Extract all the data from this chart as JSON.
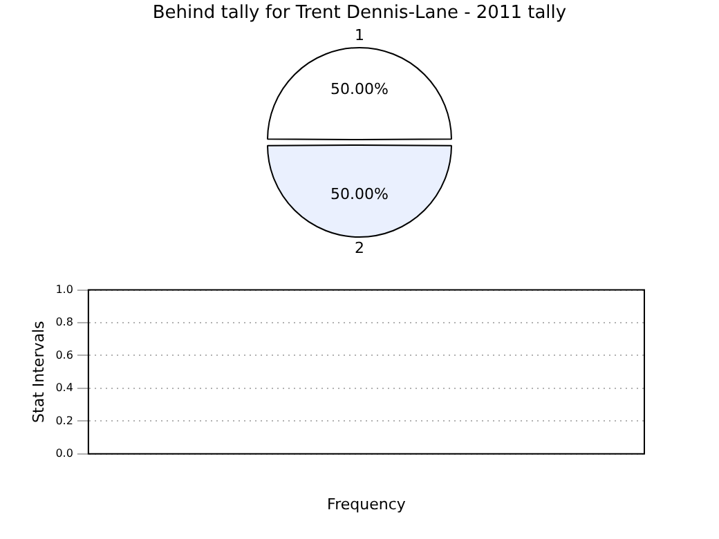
{
  "chart_data": [
    {
      "type": "pie",
      "title": "Behind tally for Trent Dennis-Lane - 2011 tally",
      "categories": [
        "1",
        "2"
      ],
      "values": [
        50,
        50
      ],
      "colors": [
        "#ffffff",
        "#eaf0fe"
      ],
      "value_labels": [
        "50.00%",
        "50.00%"
      ]
    },
    {
      "type": "bar",
      "xlabel": "Frequency",
      "ylabel": "Stat Intervals",
      "categories": [
        null
      ],
      "values": [
        null
      ],
      "ylim": [
        0,
        1
      ],
      "grid": "y",
      "yticks": [
        {
          "value": 0,
          "label": "0.0"
        },
        {
          "value": 0.2,
          "label": "0.2"
        },
        {
          "value": 0.4,
          "label": "0.4"
        },
        {
          "value": 0.6,
          "label": "0.6"
        },
        {
          "value": 0.8,
          "label": "0.8"
        },
        {
          "value": 1,
          "label": "1.0"
        }
      ]
    }
  ]
}
